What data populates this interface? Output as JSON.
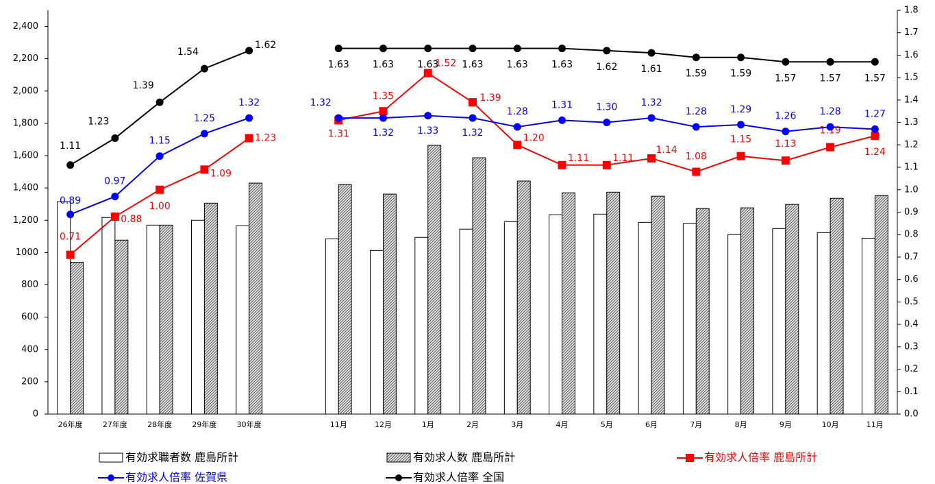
{
  "chart_data": {
    "type": "combo",
    "categories": [
      "26年度",
      "27年度",
      "28年度",
      "29年度",
      "30年度",
      null,
      "11月",
      "12月",
      "1月",
      "2月",
      "3月",
      "4月",
      "5月",
      "6月",
      "7月",
      "8月",
      "9月",
      "10月",
      "11月"
    ],
    "ylim": [
      0,
      2500
    ],
    "yticks": [
      0,
      200,
      400,
      600,
      800,
      1000,
      {
        "value": 1200,
        "label": "1,200"
      },
      {
        "value": 1400,
        "label": "1,400"
      },
      {
        "value": 1600,
        "label": "1,600"
      },
      {
        "value": 1800,
        "label": "1,800"
      },
      {
        "value": 2000,
        "label": "2,000"
      },
      {
        "value": 2200,
        "label": "2,200"
      },
      {
        "value": 2400,
        "label": "2,400"
      }
    ],
    "y2lim": [
      0,
      1.8
    ],
    "y2ticks": [
      {
        "value": 0,
        "label": "0.0"
      },
      0.1,
      0.2,
      0.3,
      0.4,
      0.5,
      0.6,
      0.7,
      0.8,
      0.9,
      {
        "value": 1,
        "label": "1.0"
      },
      1.1,
      1.2,
      1.3,
      1.4,
      1.5,
      1.6,
      1.7,
      1.8
    ],
    "legend": "bottom",
    "series": [
      {
        "name": "有効求職者数 鹿島所計",
        "type": "bar",
        "color": "#ffffff",
        "values": [
          1315,
          1217,
          1170,
          1200,
          1166,
          null,
          1085,
          1013,
          1094,
          1145,
          1191,
          1234,
          1238,
          1187,
          1179,
          1111,
          1149,
          1123,
          1089
        ]
      },
      {
        "name": "有効求人数 鹿島所計",
        "type": "bar",
        "color": "#9a9a9a",
        "pattern": "hatch",
        "values": [
          940,
          1077,
          1170,
          1306,
          1430,
          null,
          1421,
          1362,
          1664,
          1587,
          1443,
          1370,
          1374,
          1349,
          1272,
          1277,
          1298,
          1336,
          1353
        ]
      },
      {
        "name": "有効求人倍率 鹿島所計",
        "type": "line",
        "axis": "y2",
        "color": "#ff0000",
        "marker": "square",
        "values": [
          0.71,
          0.88,
          1.0,
          1.09,
          1.23,
          null,
          1.31,
          1.35,
          1.52,
          1.39,
          1.2,
          1.11,
          1.11,
          1.14,
          1.08,
          1.15,
          1.13,
          1.19,
          1.24
        ],
        "value_labels": [
          "0.71",
          "0.88",
          "1.00",
          "1.09",
          "1.23",
          null,
          "1.31",
          "1.35",
          "1.52",
          "1.39",
          "1.20",
          "1.11",
          "1.11",
          "1.14",
          "1.08",
          "1.15",
          "1.13",
          "1.19",
          "1.24"
        ]
      },
      {
        "name": "有効求人倍率 佐賀県",
        "type": "line",
        "axis": "y2",
        "color": "#0000ff",
        "marker": "circle",
        "values": [
          0.89,
          0.97,
          1.15,
          1.25,
          1.32,
          null,
          1.32,
          1.32,
          1.33,
          1.32,
          1.28,
          1.31,
          1.3,
          1.32,
          1.28,
          1.29,
          1.26,
          1.28,
          1.27
        ],
        "value_labels": [
          "0.89",
          "0.97",
          "1.15",
          "1.25",
          "1.32",
          null,
          "1.32",
          "1.32",
          "1.33",
          "1.32",
          "1.28",
          "1.31",
          "1.30",
          "1.32",
          "1.28",
          "1.29",
          "1.26",
          "1.28",
          "1.27"
        ]
      },
      {
        "name": "有効求人倍率 全国",
        "type": "line",
        "axis": "y2",
        "color": "#000000",
        "marker": "circle",
        "values": [
          1.11,
          1.23,
          1.39,
          1.54,
          1.62,
          null,
          1.63,
          1.63,
          1.63,
          1.63,
          1.63,
          1.63,
          1.62,
          1.61,
          1.59,
          1.59,
          1.57,
          1.57,
          1.57
        ],
        "value_labels": [
          "1.11",
          "1.23",
          "1.39",
          "1.54",
          "1.62",
          null,
          "1.63",
          "1.63",
          "1.63",
          "1.63",
          "1.63",
          "1.63",
          "1.62",
          "1.61",
          "1.59",
          "1.59",
          "1.57",
          "1.57",
          "1.57"
        ]
      }
    ]
  }
}
